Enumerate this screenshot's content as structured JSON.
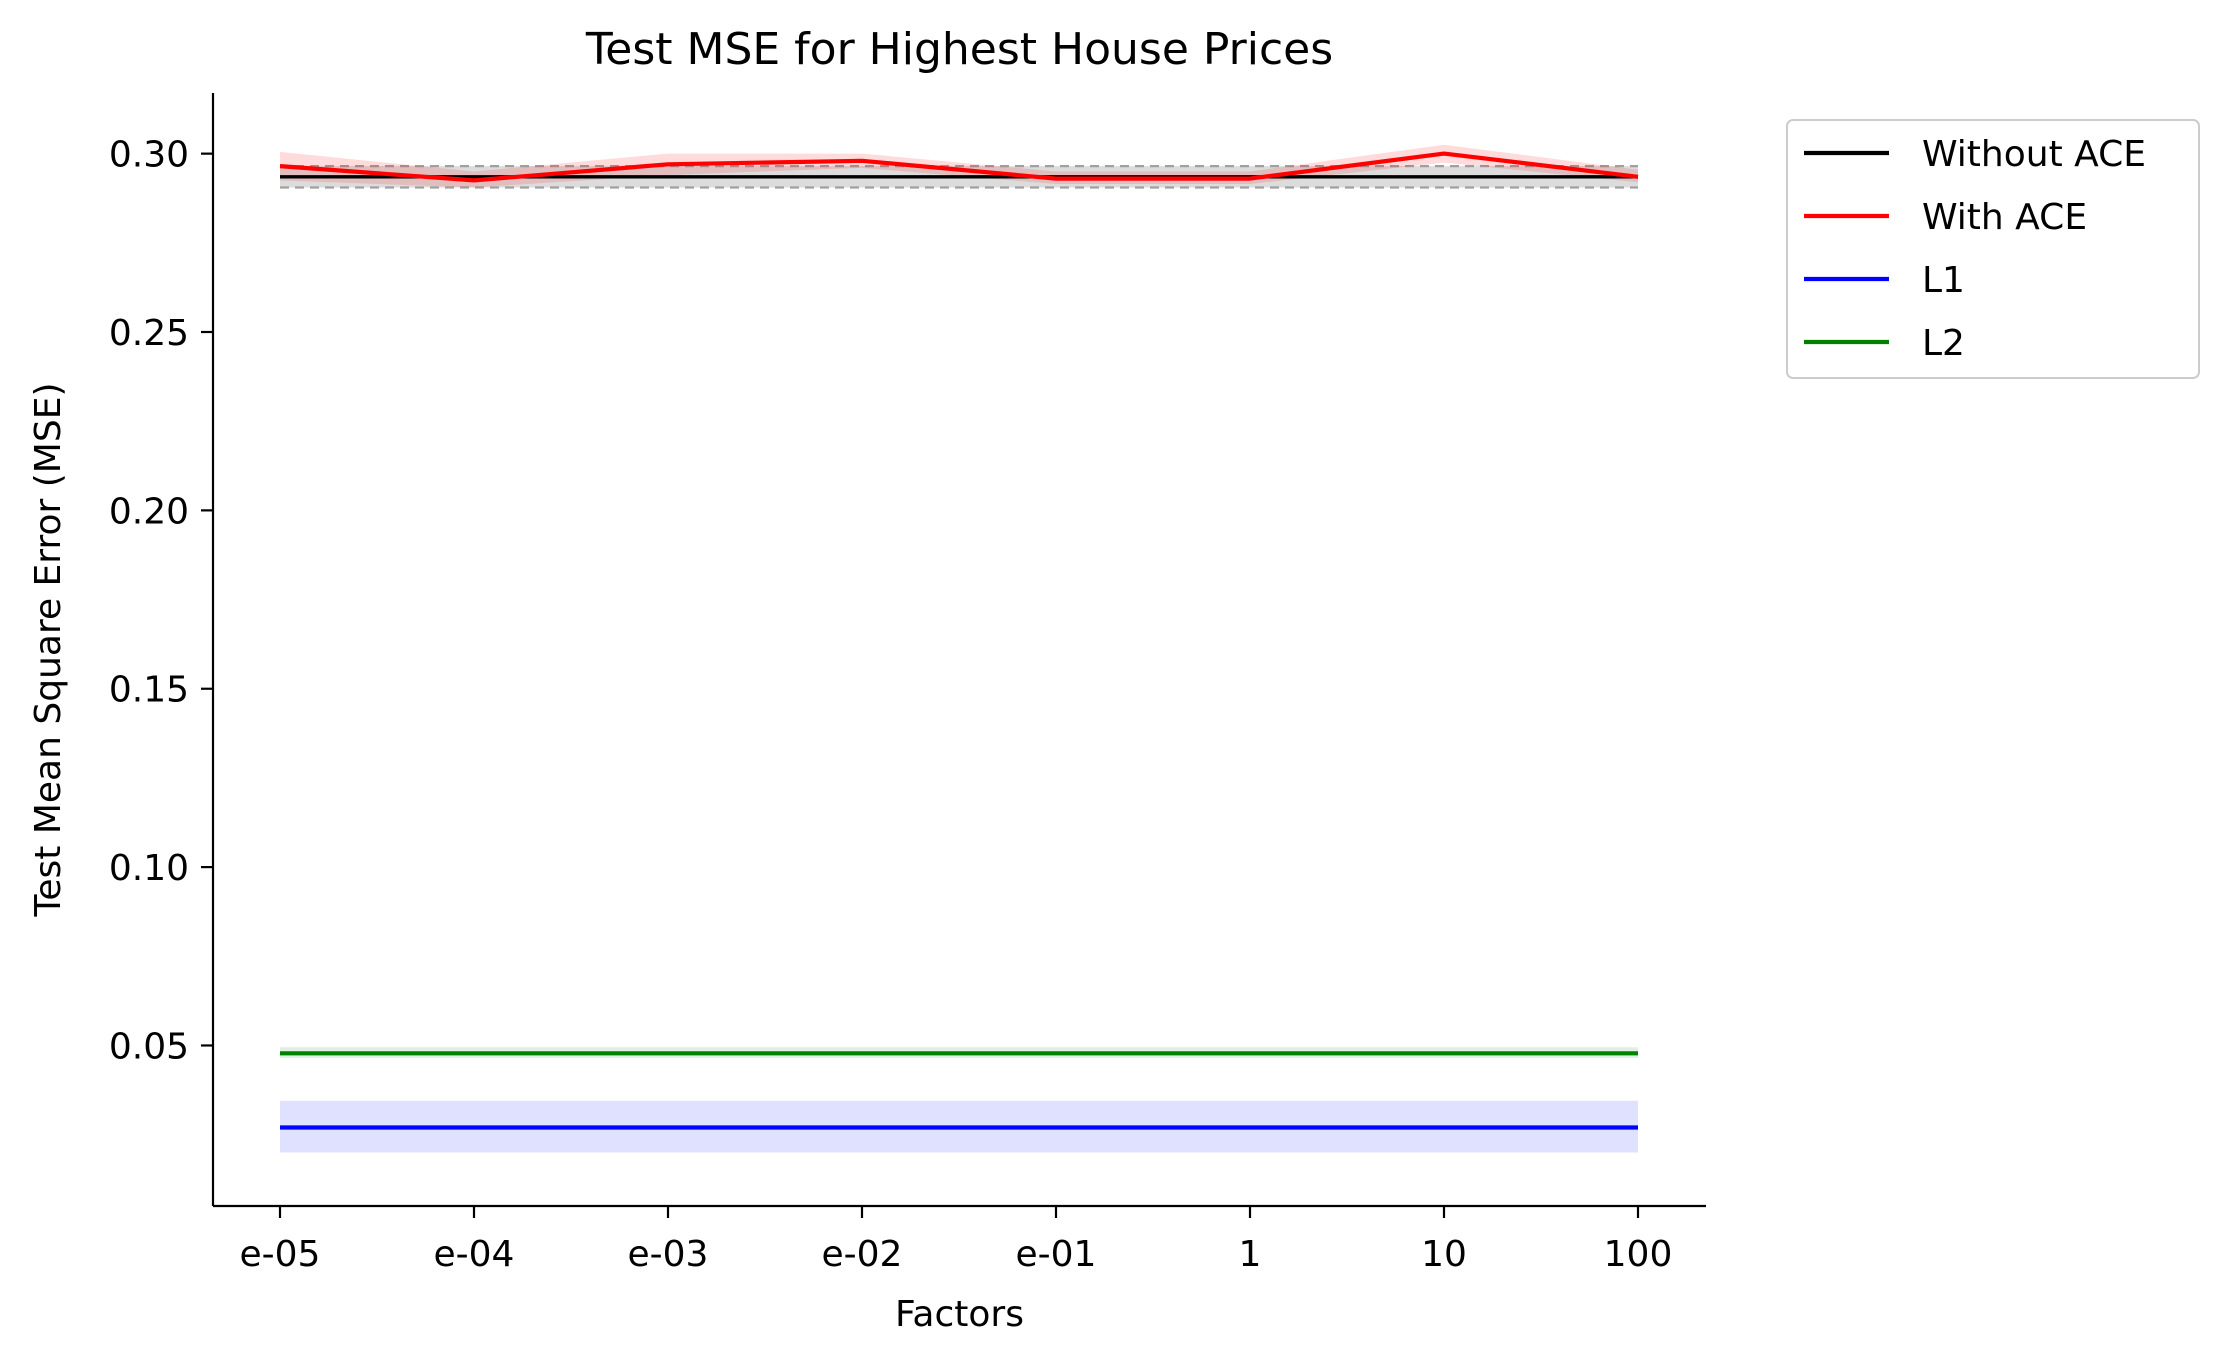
{
  "chart_data": {
    "type": "line",
    "title": "Test MSE for Highest House Prices",
    "xlabel": "Factors",
    "ylabel": "Test Mean Square Error (MSE)",
    "categories": [
      "e-05",
      "e-04",
      "e-03",
      "e-02",
      "e-01",
      "1",
      "10",
      "100"
    ],
    "ylim": [
      0.005,
      0.317
    ],
    "yticks": [
      "0.05",
      "0.10",
      "0.15",
      "0.20",
      "0.25",
      "0.30"
    ],
    "grid": false,
    "legend_position": "outside-top-right",
    "series": [
      {
        "name": "Without ACE",
        "color": "#000000",
        "values": [
          0.2935,
          0.2935,
          0.2935,
          0.2935,
          0.2935,
          0.2935,
          0.2935,
          0.2935
        ],
        "band": {
          "lower": 0.2905,
          "upper": 0.2965,
          "color": "#808080",
          "dashed_bounds": true
        }
      },
      {
        "name": "With ACE",
        "color": "#ff0000",
        "values": [
          0.2965,
          0.2925,
          0.297,
          0.298,
          0.293,
          0.293,
          0.3,
          0.2935
        ],
        "band": {
          "lower": [
            0.2925,
            0.2905,
            0.294,
            0.296,
            0.2915,
            0.2915,
            0.2975,
            0.292
          ],
          "upper": [
            0.3005,
            0.295,
            0.3,
            0.3,
            0.295,
            0.295,
            0.3025,
            0.2955
          ],
          "color": "#ff0000"
        }
      },
      {
        "name": "L1",
        "color": "#0000ff",
        "values": [
          0.027,
          0.027,
          0.027,
          0.027,
          0.027,
          0.027,
          0.027,
          0.027
        ],
        "band": {
          "lower": 0.02,
          "upper": 0.0345,
          "color": "#0000ff"
        }
      },
      {
        "name": "L2",
        "color": "#008000",
        "values": [
          0.0478,
          0.0478,
          0.0478,
          0.0478,
          0.0478,
          0.0478,
          0.0478,
          0.0478
        ],
        "band": {
          "lower": 0.0465,
          "upper": 0.0495,
          "color": "#008000"
        }
      }
    ]
  }
}
